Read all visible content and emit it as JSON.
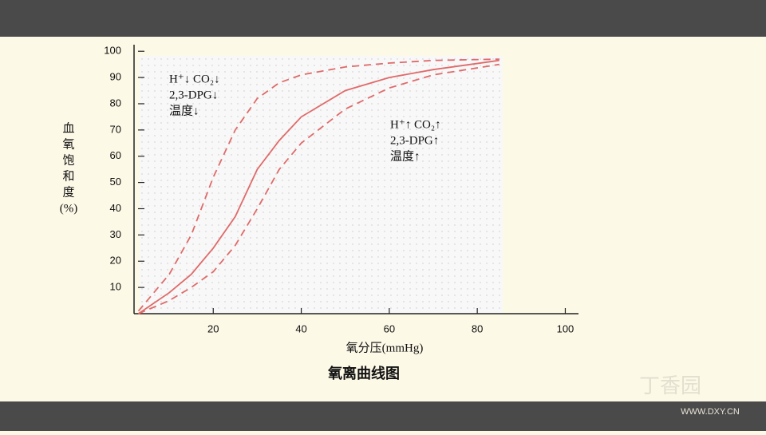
{
  "chart_data": {
    "type": "line",
    "title": "氧离曲线图",
    "xlabel": "氧分压(mmHg)",
    "ylabel": [
      "血",
      "氧",
      "饱",
      "和",
      "度",
      "(%)"
    ],
    "x": [
      3,
      10,
      15,
      20,
      25,
      30,
      35,
      40,
      50,
      60,
      70,
      85
    ],
    "series": [
      {
        "color": "#e06a6a",
        "dashed": true,
        "values": [
          1,
          15,
          30,
          52,
          70,
          82,
          88,
          91,
          94,
          95.5,
          96.5,
          97
        ]
      },
      {
        "color": "#e06a6a",
        "dashed": false,
        "values": [
          0,
          8,
          15,
          25,
          37,
          55,
          66,
          75,
          85,
          90,
          93,
          96.5
        ]
      },
      {
        "color": "#e06a6a",
        "dashed": true,
        "values": [
          0,
          5,
          10,
          16,
          26,
          40,
          55,
          65,
          78,
          86,
          91,
          95
        ]
      }
    ],
    "xlim": [
      2,
      103
    ],
    "ylim": [
      0,
      102.5
    ],
    "xticks": [
      20,
      40,
      60,
      80,
      100
    ],
    "yticks": [
      10,
      20,
      30,
      40,
      50,
      60,
      70,
      80,
      90,
      100
    ],
    "annotations": [
      [
        "H⁺↓ CO₂↓",
        "2,3-DPG↓",
        "温度↓"
      ],
      [
        "H⁺↑ CO₂↑",
        "2,3-DPG↑",
        "温度↑"
      ]
    ],
    "watermark": [
      "丁香园",
      "WWW.DXY.CN"
    ]
  }
}
